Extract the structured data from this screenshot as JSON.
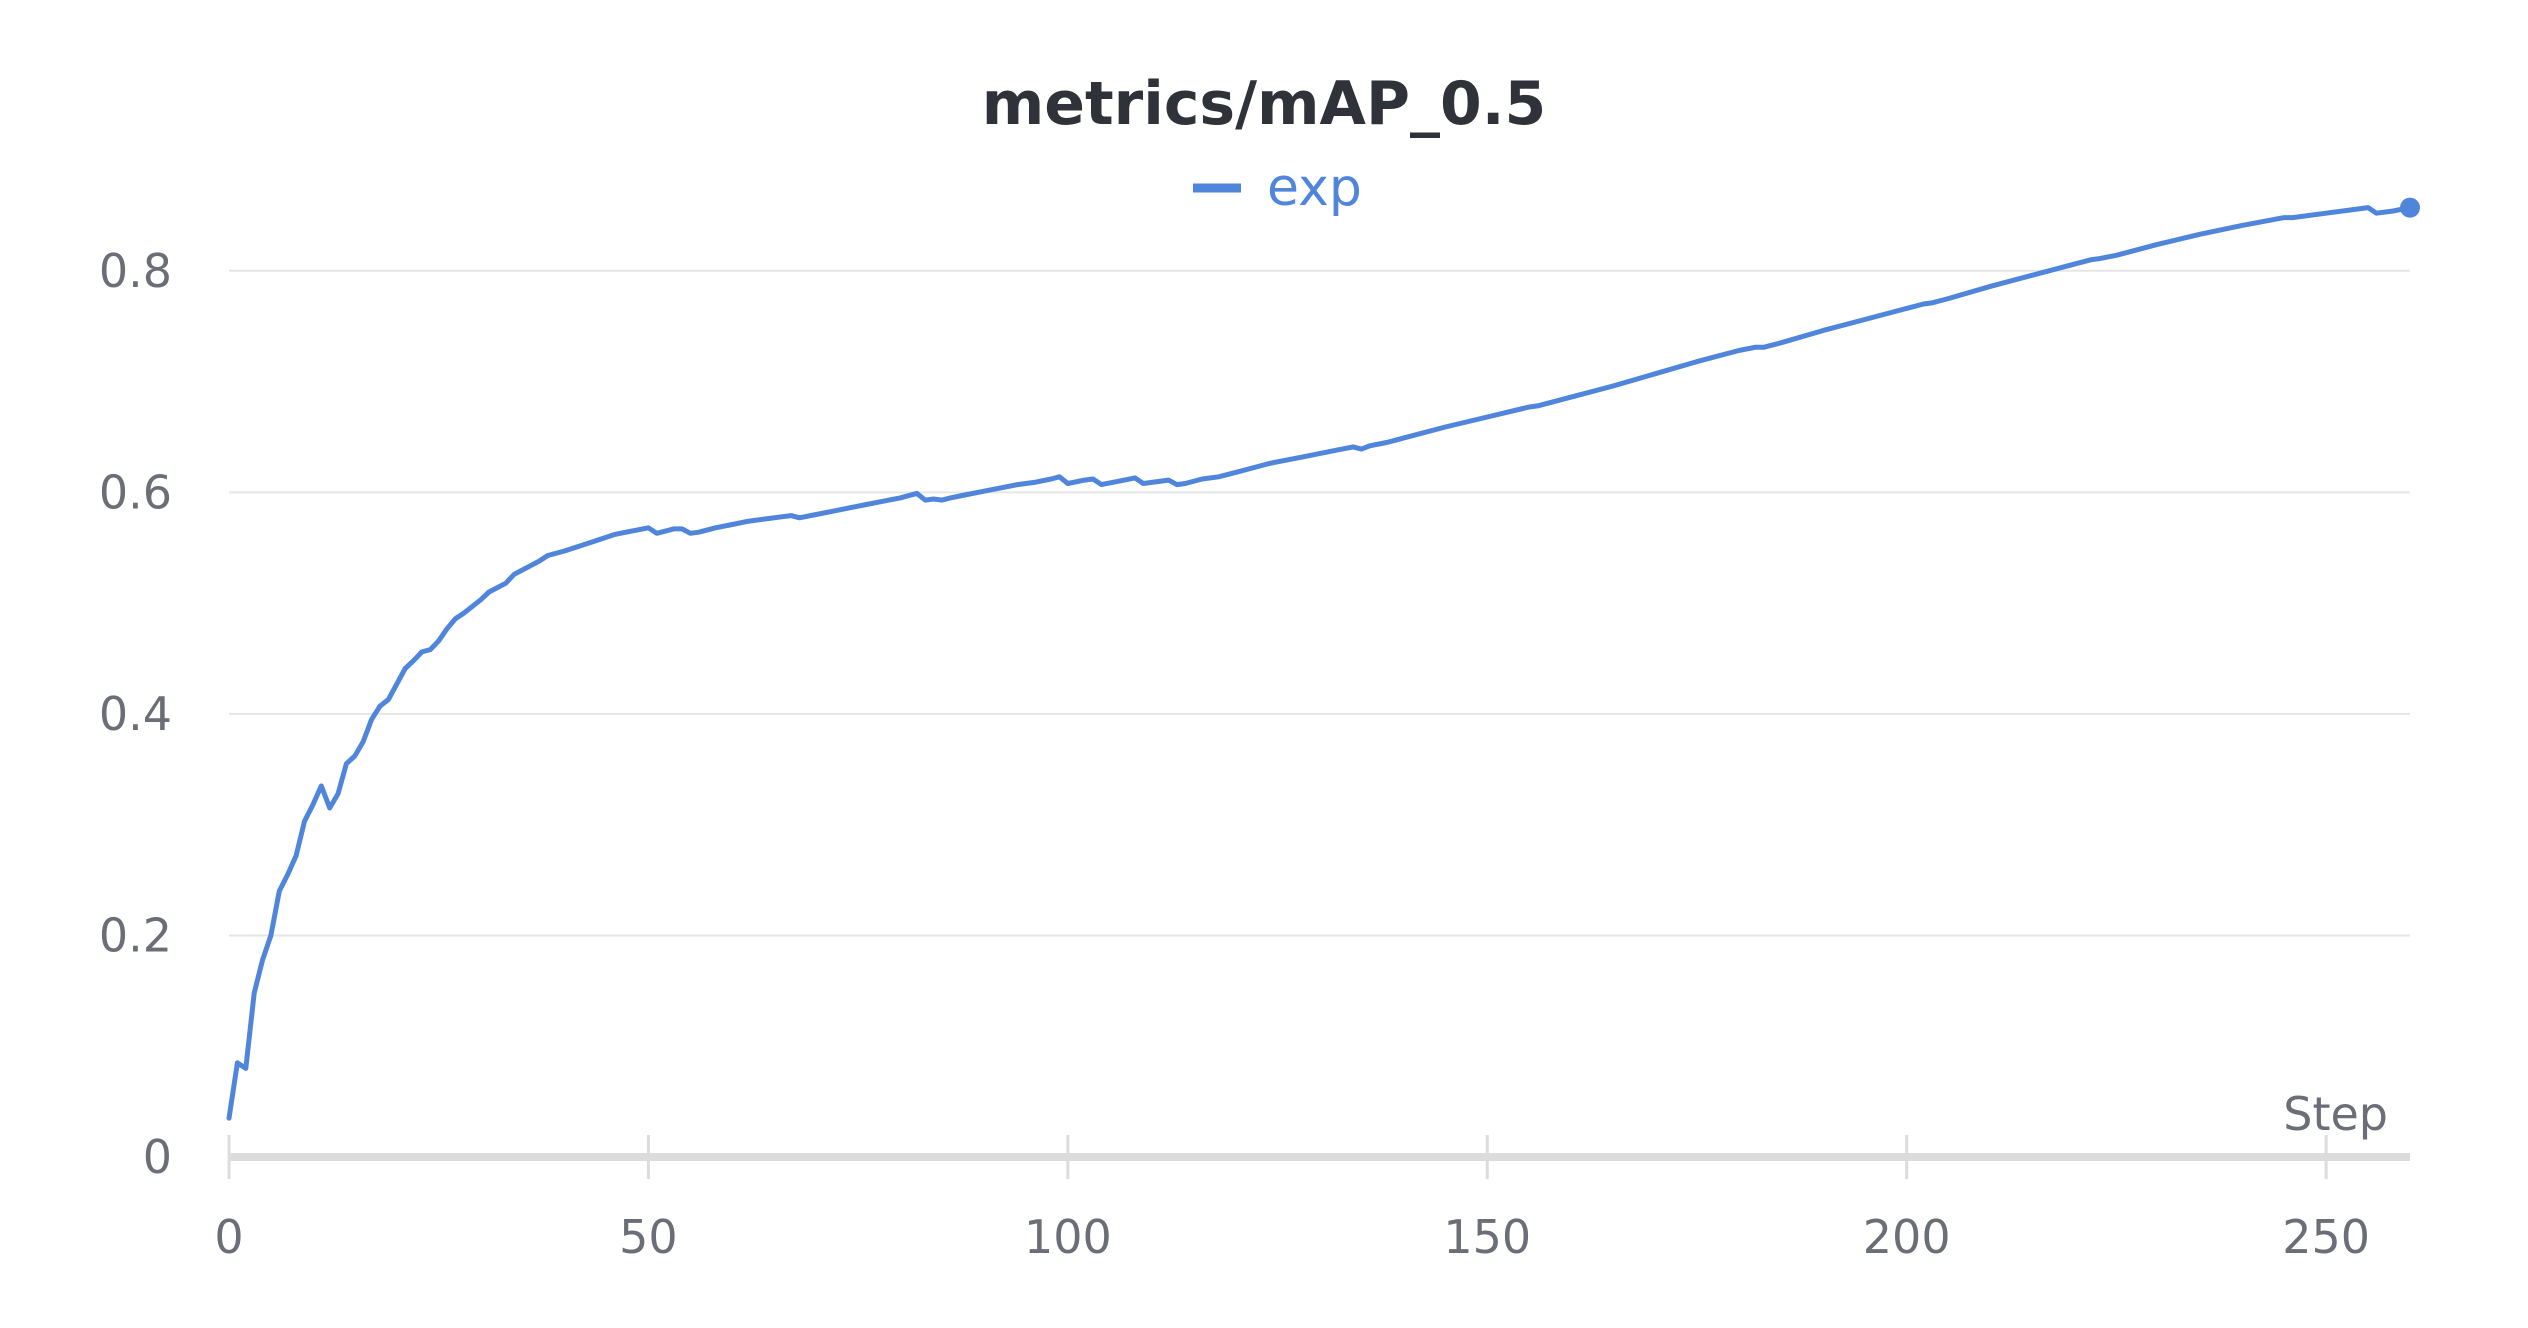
{
  "colors": {
    "series": "#4f86dc",
    "grid": "#e6e6e6",
    "axis": "#dcdcdc",
    "text": "#6b6e76",
    "title": "#2f3238"
  },
  "chart_data": {
    "type": "line",
    "title": "metrics/mAP_0.5",
    "xlabel": "Step",
    "ylabel": "",
    "xlim": [
      0,
      260
    ],
    "ylim": [
      0,
      0.9
    ],
    "xticks": [
      0,
      50,
      100,
      150,
      200,
      250
    ],
    "xtick_labels": [
      "0",
      "50",
      "100",
      "150",
      "200",
      "250"
    ],
    "yticks": [
      0,
      0.2,
      0.4,
      0.6,
      0.8
    ],
    "ytick_labels": [
      "0",
      "0.2",
      "0.4",
      "0.6",
      "0.8"
    ],
    "grid": true,
    "legend_position": "top-center",
    "series": [
      {
        "name": "exp",
        "x": [
          0,
          1,
          2,
          3,
          4,
          5,
          6,
          7,
          8,
          9,
          10,
          11,
          12,
          13,
          14,
          15,
          16,
          17,
          18,
          19,
          20,
          21,
          22,
          23,
          24,
          25,
          26,
          27,
          28,
          29,
          30,
          31,
          32,
          33,
          34,
          35,
          36,
          37,
          38,
          40,
          42,
          44,
          46,
          48,
          50,
          51,
          53,
          54,
          55,
          56,
          58,
          60,
          62,
          64,
          66,
          67,
          68,
          70,
          72,
          74,
          76,
          78,
          80,
          82,
          83,
          84,
          85,
          86,
          88,
          90,
          92,
          94,
          96,
          98,
          99,
          100,
          102,
          103,
          104,
          106,
          108,
          109,
          110,
          112,
          113,
          114,
          116,
          118,
          120,
          122,
          124,
          126,
          128,
          130,
          132,
          134,
          135,
          136,
          138,
          140,
          145,
          150,
          155,
          156,
          160,
          165,
          170,
          175,
          180,
          182,
          183,
          185,
          190,
          195,
          200,
          202,
          203,
          205,
          210,
          215,
          220,
          222,
          223,
          225,
          230,
          235,
          240,
          245,
          246,
          250,
          255,
          256,
          258,
          260
        ],
        "values": [
          0.035,
          0.085,
          0.08,
          0.148,
          0.178,
          0.2,
          0.24,
          0.255,
          0.272,
          0.303,
          0.318,
          0.335,
          0.315,
          0.328,
          0.355,
          0.362,
          0.375,
          0.395,
          0.407,
          0.413,
          0.427,
          0.441,
          0.448,
          0.456,
          0.458,
          0.466,
          0.477,
          0.486,
          0.491,
          0.497,
          0.503,
          0.51,
          0.514,
          0.518,
          0.526,
          0.53,
          0.534,
          0.538,
          0.543,
          0.547,
          0.552,
          0.557,
          0.562,
          0.565,
          0.568,
          0.563,
          0.567,
          0.567,
          0.563,
          0.564,
          0.568,
          0.571,
          0.574,
          0.576,
          0.578,
          0.579,
          0.577,
          0.58,
          0.583,
          0.586,
          0.589,
          0.592,
          0.595,
          0.599,
          0.593,
          0.594,
          0.593,
          0.595,
          0.598,
          0.601,
          0.604,
          0.607,
          0.609,
          0.612,
          0.614,
          0.608,
          0.611,
          0.612,
          0.607,
          0.61,
          0.613,
          0.608,
          0.609,
          0.611,
          0.607,
          0.608,
          0.612,
          0.614,
          0.618,
          0.622,
          0.626,
          0.629,
          0.632,
          0.635,
          0.638,
          0.641,
          0.639,
          0.642,
          0.645,
          0.649,
          0.659,
          0.668,
          0.677,
          0.678,
          0.686,
          0.696,
          0.707,
          0.718,
          0.728,
          0.731,
          0.731,
          0.735,
          0.746,
          0.756,
          0.766,
          0.77,
          0.771,
          0.775,
          0.786,
          0.796,
          0.806,
          0.81,
          0.811,
          0.814,
          0.824,
          0.833,
          0.841,
          0.848,
          0.848,
          0.852,
          0.857,
          0.852,
          0.854,
          0.857
        ]
      }
    ]
  }
}
